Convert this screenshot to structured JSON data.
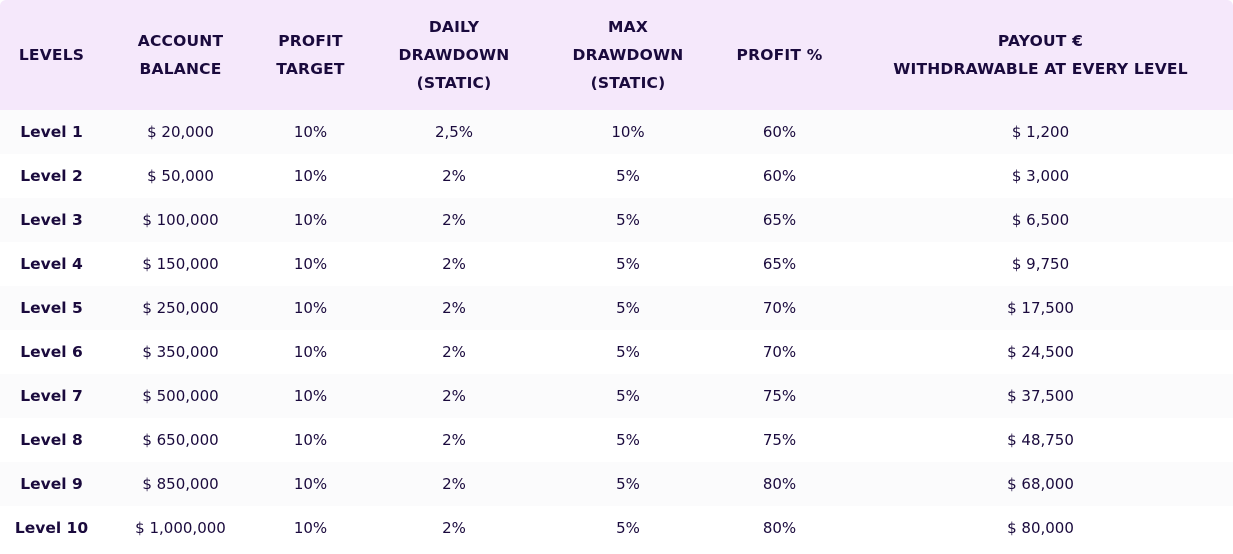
{
  "table": {
    "headers": [
      "LEVELS",
      "ACCOUNT\nBALANCE",
      "PROFIT\nTARGET",
      "DAILY\nDRAWDOWN\n(STATIC)",
      "MAX\nDRAWDOWN\n(STATIC)",
      "PROFIT %",
      "PAYOUT €\nWITHDRAWABLE AT EVERY LEVEL"
    ],
    "rows": [
      [
        "Level 1",
        "$ 20,000",
        "10%",
        "2,5%",
        "10%",
        "60%",
        "$ 1,200"
      ],
      [
        "Level 2",
        "$ 50,000",
        "10%",
        "2%",
        "5%",
        "60%",
        "$ 3,000"
      ],
      [
        "Level 3",
        "$ 100,000",
        "10%",
        "2%",
        "5%",
        "65%",
        "$ 6,500"
      ],
      [
        "Level 4",
        "$ 150,000",
        "10%",
        "2%",
        "5%",
        "65%",
        "$ 9,750"
      ],
      [
        "Level 5",
        "$ 250,000",
        "10%",
        "2%",
        "5%",
        "70%",
        "$ 17,500"
      ],
      [
        "Level 6",
        "$ 350,000",
        "10%",
        "2%",
        "5%",
        "70%",
        "$ 24,500"
      ],
      [
        "Level 7",
        "$ 500,000",
        "10%",
        "2%",
        "5%",
        "75%",
        "$ 37,500"
      ],
      [
        "Level 8",
        "$ 650,000",
        "10%",
        "2%",
        "5%",
        "75%",
        "$ 48,750"
      ],
      [
        "Level 9",
        "$ 850,000",
        "10%",
        "2%",
        "5%",
        "80%",
        "$ 68,000"
      ],
      [
        "Level 10",
        "$ 1,000,000",
        "10%",
        "2%",
        "5%",
        "80%",
        "$ 80,000"
      ]
    ]
  },
  "colors": {
    "header_bg": "#f5e8fb",
    "text": "#1a0a3d",
    "row_odd_bg": "#fbfbfc",
    "row_even_bg": "#ffffff"
  }
}
